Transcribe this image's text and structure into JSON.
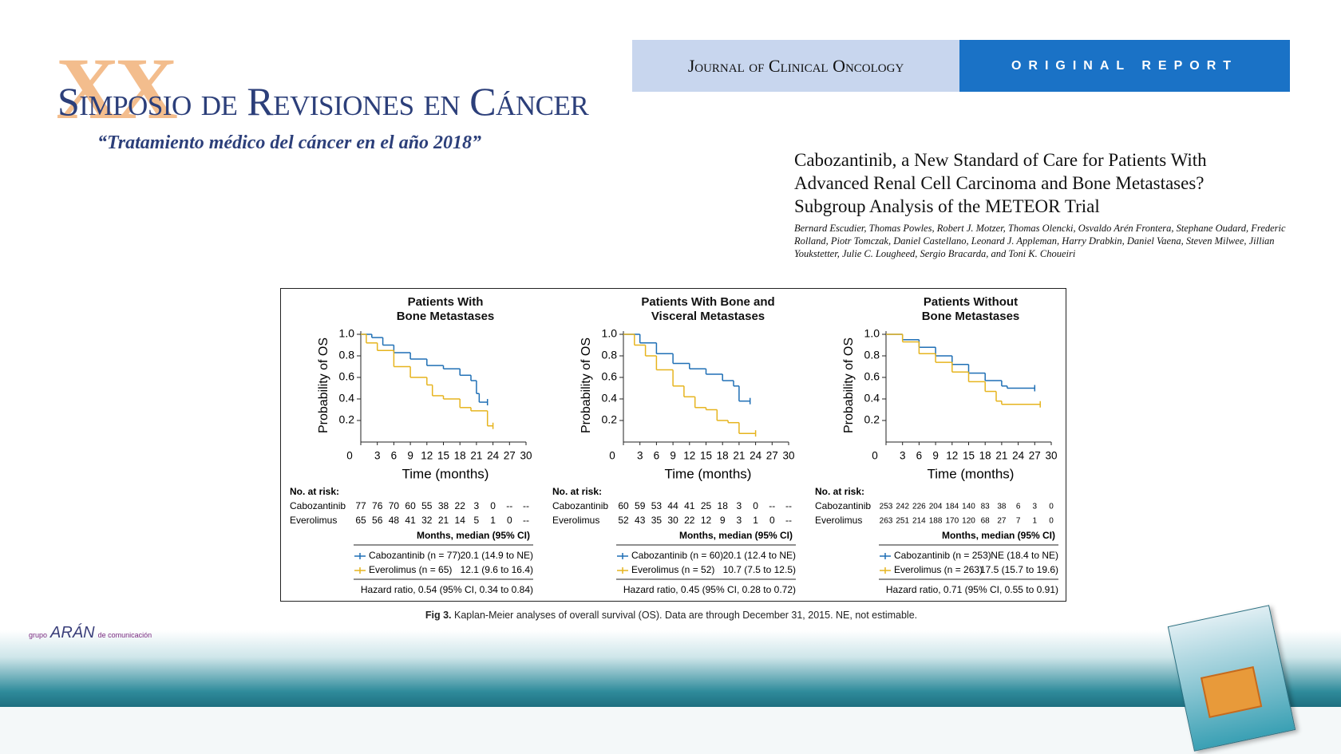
{
  "slide": {
    "logo_numeral": "XX",
    "logo_title": "Simposio de Revisiones en Cáncer",
    "logo_subtitle": "“Tratamiento médico del cáncer en el año 2018”",
    "journal": "Journal of Clinical Oncology",
    "report": "ORIGINAL REPORT",
    "article_title": "Cabozantinib, a New Standard of Care for Patients With Advanced Renal Cell Carcinoma and Bone Metastases? Subgroup Analysis of the METEOR Trial",
    "authors": "Bernard Escudier, Thomas Powles, Robert J. Motzer, Thomas Olencki, Osvaldo Arén Frontera, Stephane Oudard, Frederic Rolland, Piotr Tomczak, Daniel Castellano, Leonard J. Appleman, Harry Drabkin, Daniel Vaena, Steven Milwee, Jillian Youkstetter, Julie C. Lougheed, Sergio Bracarda, and Toni K. Choueiri",
    "caption_label": "Fig 3.",
    "caption": "Kaplan-Meier analyses of overall survival (OS). Data are through December 31, 2015. NE, not estimable.",
    "publisher_left": "grupo",
    "publisher": "ARÁN",
    "publisher_right": "de comunicación"
  },
  "chart_data": [
    {
      "type": "line",
      "step": true,
      "title": "Patients With Bone Metastases",
      "ylabel": "Probability of OS",
      "xlabel": "Time (months)",
      "xlim": [
        0,
        30
      ],
      "ylim": [
        0,
        1
      ],
      "xticks": [
        0,
        3,
        6,
        9,
        12,
        15,
        18,
        21,
        24,
        27,
        30
      ],
      "yticks": [
        0.2,
        0.4,
        0.6,
        0.8,
        {
          "value": 1,
          "label": "1.0"
        }
      ],
      "series": [
        {
          "name": "Cabozantinib (n = 77)",
          "median": "20.1 (14.9 to NE)",
          "color": "#1f6fb5",
          "x": [
            0,
            2,
            4,
            6,
            9,
            12,
            15,
            18,
            20,
            21,
            21.5,
            23
          ],
          "values": [
            1,
            0.97,
            0.9,
            0.83,
            0.77,
            0.71,
            0.68,
            0.62,
            0.57,
            0.45,
            0.37,
            0.37
          ]
        },
        {
          "name": "Everolimus (n = 65)",
          "median": "12.1 (9.6 to 16.4)",
          "color": "#e6b41e",
          "x": [
            0,
            1,
            3,
            6,
            9,
            12,
            13,
            15,
            18,
            20,
            23,
            24
          ],
          "values": [
            1,
            0.92,
            0.85,
            0.7,
            0.6,
            0.53,
            0.43,
            0.4,
            0.32,
            0.29,
            0.15,
            0.15
          ]
        }
      ],
      "risk_label": "No. at risk:",
      "risk": [
        {
          "name": "Cabozantinib",
          "values": [
            77,
            76,
            70,
            60,
            55,
            38,
            22,
            3,
            0,
            "--",
            "--"
          ]
        },
        {
          "name": "Everolimus",
          "values": [
            65,
            56,
            48,
            41,
            32,
            21,
            14,
            5,
            1,
            0,
            "--"
          ]
        }
      ],
      "legend_header": "Months, median (95% CI)",
      "hazard_ratio": "Hazard ratio, 0.54 (95% CI, 0.34 to 0.84)"
    },
    {
      "type": "line",
      "step": true,
      "title": "Patients With Bone and Visceral Metastases",
      "ylabel": "Probability of OS",
      "xlabel": "Time (months)",
      "xlim": [
        0,
        30
      ],
      "ylim": [
        0,
        1
      ],
      "xticks": [
        0,
        3,
        6,
        9,
        12,
        15,
        18,
        21,
        24,
        27,
        30
      ],
      "yticks": [
        0.2,
        0.4,
        0.6,
        0.8,
        {
          "value": 1,
          "label": "1.0"
        }
      ],
      "series": [
        {
          "name": "Cabozantinib (n = 60)",
          "median": "20.1 (12.4 to NE)",
          "color": "#1f6fb5",
          "x": [
            0,
            3,
            6,
            9,
            12,
            15,
            18,
            20,
            21,
            23
          ],
          "values": [
            1,
            0.92,
            0.82,
            0.73,
            0.68,
            0.63,
            0.57,
            0.52,
            0.38,
            0.38
          ]
        },
        {
          "name": "Everolimus (n = 52)",
          "median": "10.7 (7.5 to 12.5)",
          "color": "#e6b41e",
          "x": [
            0,
            2,
            4,
            6,
            9,
            11,
            13,
            15,
            17,
            19,
            21,
            24
          ],
          "values": [
            1,
            0.9,
            0.8,
            0.67,
            0.52,
            0.42,
            0.32,
            0.3,
            0.2,
            0.18,
            0.08,
            0.08
          ]
        }
      ],
      "risk_label": "No. at risk:",
      "risk": [
        {
          "name": "Cabozantinib",
          "values": [
            60,
            59,
            53,
            44,
            41,
            25,
            18,
            3,
            0,
            "--",
            "--"
          ]
        },
        {
          "name": "Everolimus",
          "values": [
            52,
            43,
            35,
            30,
            22,
            12,
            9,
            3,
            1,
            0,
            "--"
          ]
        }
      ],
      "legend_header": "Months, median (95% CI)",
      "hazard_ratio": "Hazard ratio, 0.45 (95% CI, 0.28 to 0.72)"
    },
    {
      "type": "line",
      "step": true,
      "title": "Patients Without Bone Metastases",
      "ylabel": "Probability of OS",
      "xlabel": "Time (months)",
      "xlim": [
        0,
        30
      ],
      "ylim": [
        0,
        1
      ],
      "xticks": [
        0,
        3,
        6,
        9,
        12,
        15,
        18,
        21,
        24,
        27,
        30
      ],
      "yticks": [
        0.2,
        0.4,
        0.6,
        0.8,
        {
          "value": 1,
          "label": "1.0"
        }
      ],
      "series": [
        {
          "name": "Cabozantinib (n = 253)",
          "median": "NE (18.4 to NE)",
          "color": "#1f6fb5",
          "x": [
            0,
            3,
            6,
            9,
            12,
            15,
            18,
            21,
            22,
            27
          ],
          "values": [
            1,
            0.95,
            0.88,
            0.8,
            0.72,
            0.64,
            0.57,
            0.52,
            0.5,
            0.5
          ]
        },
        {
          "name": "Everolimus (n = 263)",
          "median": "17.5 (15.7 to 19.6)",
          "color": "#e6b41e",
          "x": [
            0,
            3,
            6,
            9,
            12,
            15,
            18,
            20,
            21,
            28
          ],
          "values": [
            1,
            0.93,
            0.82,
            0.74,
            0.65,
            0.56,
            0.47,
            0.38,
            0.35,
            0.35
          ]
        }
      ],
      "risk_label": "No. at risk:",
      "risk": [
        {
          "name": "Cabozantinib",
          "values": [
            253,
            242,
            226,
            204,
            184,
            140,
            83,
            38,
            6,
            3,
            0
          ]
        },
        {
          "name": "Everolimus",
          "values": [
            263,
            251,
            214,
            188,
            170,
            120,
            68,
            27,
            7,
            1,
            0
          ]
        }
      ],
      "legend_header": "Months, median (95% CI)",
      "hazard_ratio": "Hazard ratio, 0.71 (95% CI, 0.55 to 0.91)"
    }
  ]
}
